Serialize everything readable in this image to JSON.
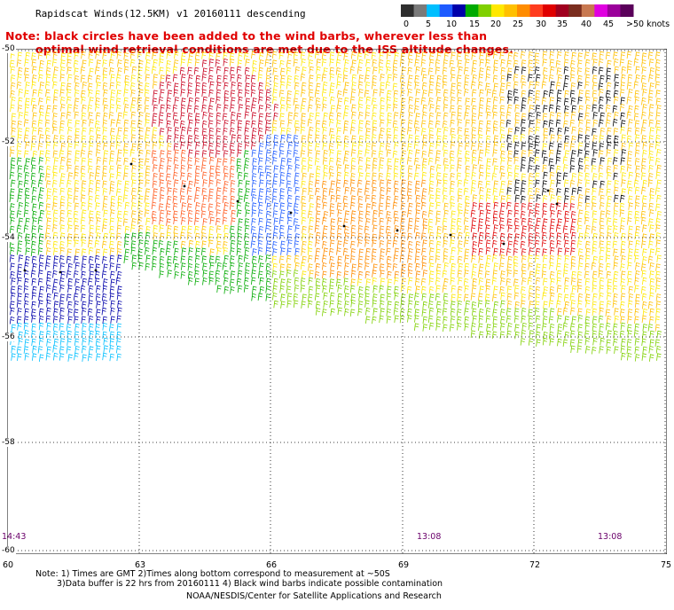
{
  "title": "Rapidscat Winds(12.5KM) v1 20160111 descending",
  "note_line1": "Note: black circles have been added to the wind barbs, wherever less than",
  "note_line2": "optimal wind retrieval conditions are met due to the ISS altitude changes.",
  "colorbar": {
    "labels": [
      "0",
      "5",
      "10",
      "15",
      "20",
      "25",
      "30",
      "35",
      "40",
      "45",
      ">50 knots"
    ],
    "colors": [
      "#2e2e2e",
      "#7a7a7a",
      "#00bfff",
      "#1e5bff",
      "#0000aa",
      "#00aa00",
      "#7fd000",
      "#ffe800",
      "#ffc000",
      "#ff8c00",
      "#ff3c1e",
      "#e00000",
      "#a0001e",
      "#7a2d1e",
      "#c87850",
      "#e000e0",
      "#9b009b",
      "#5a005a"
    ]
  },
  "y_axis_labels": [
    "-50",
    "-52",
    "-54",
    "-56",
    "-58",
    "-60"
  ],
  "x_axis_labels": [
    "60",
    "63",
    "66",
    "69",
    "72",
    "75"
  ],
  "time_labels": [
    "14:43",
    "13:08",
    "13:08"
  ],
  "footer_line1": "Note: 1) Times are GMT 2)Times along bottom correspond to measurement at ~50S",
  "footer_line2": "3)Data buffer is 22 hrs from 20160111 4) Black wind barbs indicate possible contamination",
  "credit": "NOAA/NESDIS/Center for Satellite Applications and Research"
}
